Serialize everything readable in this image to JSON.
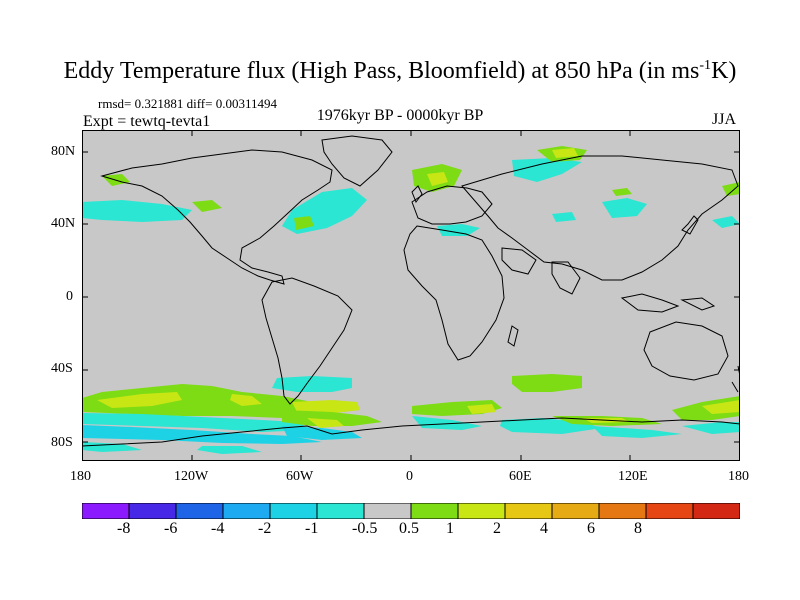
{
  "title": {
    "main": "Eddy Temperature flux (High Pass, Bloomfield) at 850 hPa (in ms",
    "sup": "-1",
    "unit_tail": "K)"
  },
  "stats": "rmsd= 0.321881 diff= 0.00311494",
  "experiment": "Expt = tewtq-tevta1",
  "period": "1976kyr BP - 0000kyr BP",
  "season": "JJA",
  "axes": {
    "lat_labels": [
      "80N",
      "40N",
      "0",
      "40S",
      "80S"
    ],
    "lon_labels": [
      "180",
      "120W",
      "60W",
      "0",
      "60E",
      "120E",
      "180"
    ]
  },
  "colorbar": {
    "colors": [
      "#8c1aff",
      "#4628e6",
      "#1e64e6",
      "#1eaaf0",
      "#1ed2e6",
      "#2ae6d2",
      "#c8c8c8",
      "#7ddc14",
      "#c8e614",
      "#e6c814",
      "#e6aa14",
      "#e67814",
      "#e64614",
      "#d22814"
    ],
    "labels": [
      "-8",
      "-6",
      "-4",
      "-2",
      "-1",
      "-0.5",
      "0.5",
      "1",
      "2",
      "4",
      "6",
      "8"
    ]
  },
  "colors": {
    "background": "#c8c8c8",
    "coast": "#000000",
    "cyan": "#2ae6d2",
    "lightblue": "#1ed2e6",
    "green": "#7ddc14",
    "yellow": "#c8e614",
    "orange": "#e6c814"
  }
}
